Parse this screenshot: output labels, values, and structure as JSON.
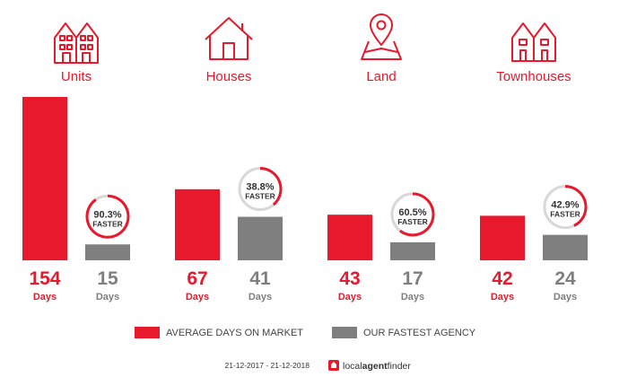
{
  "colors": {
    "accent": "#e8192c",
    "agency": "#7f7f7f",
    "ring_track": "#d8d8d8"
  },
  "chart_data": {
    "type": "bar",
    "categories": [
      "Units",
      "Houses",
      "Land",
      "Townhouses"
    ],
    "category_icons": [
      "units-icon",
      "house-icon",
      "land-pin-icon",
      "townhouses-icon"
    ],
    "series": [
      {
        "name": "AVERAGE DAYS ON MARKET",
        "values": [
          154,
          67,
          43,
          42
        ]
      },
      {
        "name": "OUR FASTEST AGENCY",
        "values": [
          15,
          41,
          17,
          24
        ]
      }
    ],
    "unit_label": "Days",
    "faster_pct": [
      90.3,
      38.8,
      60.5,
      42.9
    ],
    "faster_label": "FASTER",
    "ylim": [
      0,
      154
    ]
  },
  "footer": {
    "date_range": "21-12-2017 - 21-12-2018",
    "brand_pre": "local",
    "brand_bold": "agent",
    "brand_post": "finder"
  }
}
